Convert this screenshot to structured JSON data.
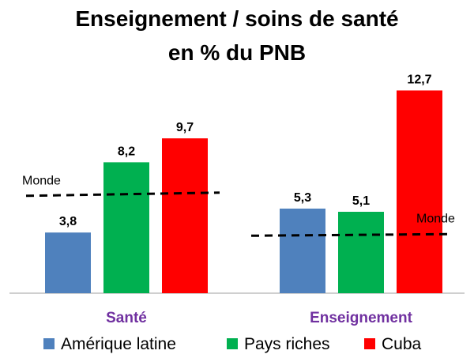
{
  "chart_data": {
    "type": "bar",
    "title_lines": [
      "Enseignement / soins de santé",
      "en % du PNB"
    ],
    "categories": [
      "Santé",
      "Enseignement"
    ],
    "series": [
      {
        "name": "Amérique latine",
        "color": "#4f81bd",
        "values": [
          3.8,
          5.3
        ],
        "labels": [
          "3,8",
          "5,3"
        ]
      },
      {
        "name": "Pays riches",
        "color": "#00b050",
        "values": [
          8.2,
          5.1
        ],
        "labels": [
          "8,2",
          "5,1"
        ]
      },
      {
        "name": "Cuba",
        "color": "#ff0000",
        "values": [
          9.7,
          12.7
        ],
        "labels": [
          "9,7",
          "12,7"
        ]
      }
    ],
    "reference_lines": [
      {
        "label": "Monde",
        "category": "Santé",
        "value_start": 6.1,
        "value_end": 6.3
      },
      {
        "label": "Monde",
        "category": "Enseignement",
        "value_start": 3.6,
        "value_end": 3.7
      }
    ],
    "category_label_color": "#7030a0",
    "legend_position": "bottom",
    "grid": false,
    "ylim": [
      0,
      13.5
    ]
  }
}
